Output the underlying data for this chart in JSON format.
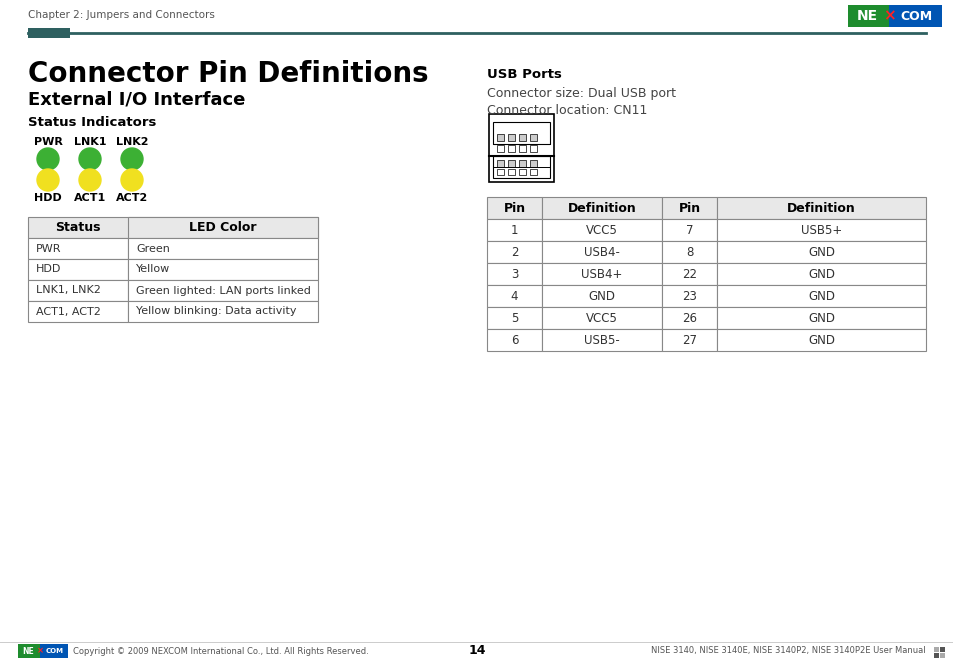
{
  "page_title": "Chapter 2: Jumpers and Connectors",
  "page_number": "14",
  "footer_left": "Copyright © 2009 NEXCOM International Co., Ltd. All Rights Reserved.",
  "footer_right": "NISE 3140, NISE 3140E, NISE 3140P2, NISE 3140P2E User Manual",
  "main_title": "Connector Pin Definitions",
  "subtitle": "External I/O Interface",
  "section1": "Status Indicators",
  "led_labels_top": [
    "PWR",
    "LNK1",
    "LNK2"
  ],
  "led_labels_bottom": [
    "HDD",
    "ACT1",
    "ACT2"
  ],
  "led_green_color": "#3cb034",
  "led_yellow_color": "#f0e020",
  "status_table_headers": [
    "Status",
    "LED Color"
  ],
  "status_table_rows": [
    [
      "PWR",
      "Green"
    ],
    [
      "HDD",
      "Yellow"
    ],
    [
      "LNK1, LNK2",
      "Green lighted: LAN ports linked"
    ],
    [
      "ACT1, ACT2",
      "Yellow blinking: Data activity"
    ]
  ],
  "usb_section_title": "USB Ports",
  "usb_info_line1": "Connector size: Dual USB port",
  "usb_info_line2": "Connector location: CN11",
  "pin_table_headers": [
    "Pin",
    "Definition",
    "Pin",
    "Definition"
  ],
  "pin_table_rows": [
    [
      "1",
      "VCC5",
      "7",
      "USB5+"
    ],
    [
      "2",
      "USB4-",
      "8",
      "GND"
    ],
    [
      "3",
      "USB4+",
      "22",
      "GND"
    ],
    [
      "4",
      "GND",
      "23",
      "GND"
    ],
    [
      "5",
      "VCC5",
      "26",
      "GND"
    ],
    [
      "6",
      "USB5-",
      "27",
      "GND"
    ]
  ],
  "header_bar_color": "#2e6060",
  "nexcom_green": "#1e8c2e",
  "nexcom_blue": "#0055b3",
  "table_border": "#888888",
  "table_header_bg": "#e8e8e8"
}
